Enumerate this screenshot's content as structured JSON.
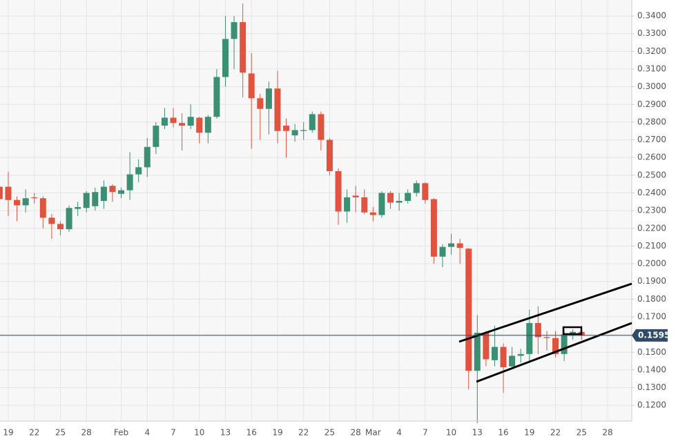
{
  "chart_data": {
    "type": "candlestick",
    "categories": [
      null,
      "19",
      null,
      null,
      "22",
      null,
      null,
      "25",
      null,
      null,
      "28",
      null,
      null,
      null,
      "Feb",
      null,
      null,
      "4",
      null,
      null,
      "7",
      null,
      null,
      "10",
      null,
      null,
      "13",
      null,
      null,
      "16",
      null,
      null,
      "19",
      null,
      null,
      "22",
      null,
      null,
      "25",
      null,
      null,
      "28",
      null,
      "Mar",
      null,
      null,
      "4",
      null,
      null,
      "7",
      null,
      null,
      "10",
      null,
      null,
      "13",
      null,
      null,
      "16",
      null,
      null,
      "19",
      null,
      null,
      "22",
      null,
      null,
      "25",
      null,
      null,
      "28",
      null,
      null
    ],
    "open": [
      0.2435,
      0.2435,
      0.236,
      0.233,
      0.2375,
      0.237,
      0.226,
      0.2225,
      0.2195,
      0.231,
      0.2315,
      0.2325,
      0.2355,
      0.244,
      0.2395,
      0.2415,
      0.2505,
      0.2545,
      0.266,
      0.278,
      0.2825,
      0.2795,
      0.278,
      0.2825,
      0.274,
      0.283,
      0.3055,
      0.327,
      0.3365,
      0.3075,
      0.2935,
      0.2875,
      0.299,
      0.278,
      0.2725,
      0.275,
      0.2755,
      0.2845,
      0.27,
      0.2523,
      0.2295,
      0.2385,
      0.2375,
      0.229,
      0.2275,
      0.24,
      0.2345,
      0.2355,
      0.24,
      0.2455,
      0.2365,
      0.204,
      0.2095,
      0.2115,
      0.2085,
      0.1395,
      0.161,
      0.1455,
      0.153,
      0.142,
      0.148,
      0.149,
      0.1665,
      0.1585,
      0.158,
      0.149,
      0.1595,
      0.1615,
      null,
      null,
      null,
      null,
      null
    ],
    "high": [
      0.245,
      0.252,
      0.238,
      0.242,
      0.24,
      0.238,
      0.228,
      0.224,
      0.233,
      0.235,
      0.241,
      0.243,
      0.247,
      0.245,
      0.243,
      0.263,
      0.259,
      0.271,
      0.28,
      0.288,
      0.288,
      0.285,
      0.29,
      0.283,
      0.284,
      0.31,
      0.34,
      0.34,
      0.347,
      0.319,
      0.296,
      0.303,
      0.309,
      0.282,
      0.279,
      0.28,
      0.286,
      0.286,
      0.271,
      0.254,
      0.242,
      0.244,
      0.242,
      0.232,
      0.241,
      0.241,
      0.24,
      0.242,
      0.247,
      0.246,
      0.237,
      0.211,
      0.217,
      0.214,
      0.209,
      0.171,
      0.162,
      0.165,
      0.155,
      0.153,
      0.152,
      0.174,
      0.176,
      0.162,
      0.162,
      0.163,
      0.163,
      0.165,
      null,
      null,
      null,
      null,
      null
    ],
    "low": [
      0.232,
      0.227,
      0.224,
      0.229,
      0.234,
      0.22,
      0.214,
      0.216,
      0.218,
      0.227,
      0.229,
      0.23,
      0.231,
      0.235,
      0.237,
      0.236,
      0.246,
      0.249,
      0.262,
      0.276,
      0.277,
      0.264,
      0.276,
      0.268,
      0.268,
      0.282,
      0.3,
      0.31,
      0.294,
      0.265,
      0.27,
      0.273,
      0.268,
      0.26,
      0.269,
      0.27,
      0.274,
      0.264,
      0.25,
      0.222,
      0.223,
      0.229,
      0.228,
      0.224,
      0.226,
      0.231,
      0.23,
      0.234,
      0.238,
      0.234,
      0.2,
      0.198,
      0.205,
      0.2,
      0.129,
      0.11,
      0.142,
      0.142,
      0.127,
      0.141,
      0.144,
      0.145,
      0.149,
      0.151,
      0.147,
      0.145,
      0.157,
      0.157,
      null,
      null,
      null,
      null,
      null
    ],
    "close": [
      0.2365,
      0.236,
      0.233,
      0.237,
      0.237,
      0.226,
      0.2225,
      0.2195,
      0.2315,
      0.232,
      0.24,
      0.2405,
      0.2435,
      0.2405,
      0.2415,
      0.2505,
      0.2545,
      0.266,
      0.278,
      0.2825,
      0.2795,
      0.278,
      0.283,
      0.274,
      0.283,
      0.3055,
      0.327,
      0.3365,
      0.308,
      0.2935,
      0.2875,
      0.299,
      0.275,
      0.275,
      0.2755,
      0.2755,
      0.2845,
      0.27,
      0.2523,
      0.2295,
      0.2375,
      0.2375,
      0.229,
      0.2275,
      0.24,
      0.2345,
      0.2355,
      0.24,
      0.2455,
      0.236,
      0.204,
      0.2095,
      0.2115,
      0.209,
      0.1395,
      0.161,
      0.146,
      0.153,
      0.1415,
      0.148,
      0.149,
      0.1665,
      0.1585,
      0.158,
      0.149,
      0.16,
      0.1615,
      0.1595,
      null,
      null,
      null,
      null,
      null
    ],
    "up_color": "#3b8f72",
    "down_color": "#e0533e",
    "last_price": 0.1595,
    "ylim": [
      0.1111,
      0.349
    ],
    "yticks": [
      {
        "value": 0.12,
        "label": "0.1200"
      },
      {
        "value": 0.13,
        "label": "0.1300"
      },
      {
        "value": 0.14,
        "label": "0.1400"
      },
      {
        "value": 0.15,
        "label": "0.1500"
      },
      {
        "value": 0.16,
        "label": "0.1600"
      },
      {
        "value": 0.17,
        "label": "0.1700"
      },
      {
        "value": 0.18,
        "label": "0.1800"
      },
      {
        "value": 0.19,
        "label": "0.1900"
      },
      {
        "value": 0.2,
        "label": "0.2000"
      },
      {
        "value": 0.21,
        "label": "0.2100"
      },
      {
        "value": 0.22,
        "label": "0.2200"
      },
      {
        "value": 0.23,
        "label": "0.2300"
      },
      {
        "value": 0.24,
        "label": "0.2400"
      },
      {
        "value": 0.25,
        "label": "0.2500"
      },
      {
        "value": 0.26,
        "label": "0.2600"
      },
      {
        "value": 0.27,
        "label": "0.2700"
      },
      {
        "value": 0.28,
        "label": "0.2800"
      },
      {
        "value": 0.29,
        "label": "0.2900"
      },
      {
        "value": 0.3,
        "label": "0.3000"
      },
      {
        "value": 0.31,
        "label": "0.3100"
      },
      {
        "value": 0.32,
        "label": "0.3200"
      },
      {
        "value": 0.33,
        "label": "0.3300"
      },
      {
        "value": 0.34,
        "label": "0.3400"
      }
    ],
    "grid": true
  }
}
